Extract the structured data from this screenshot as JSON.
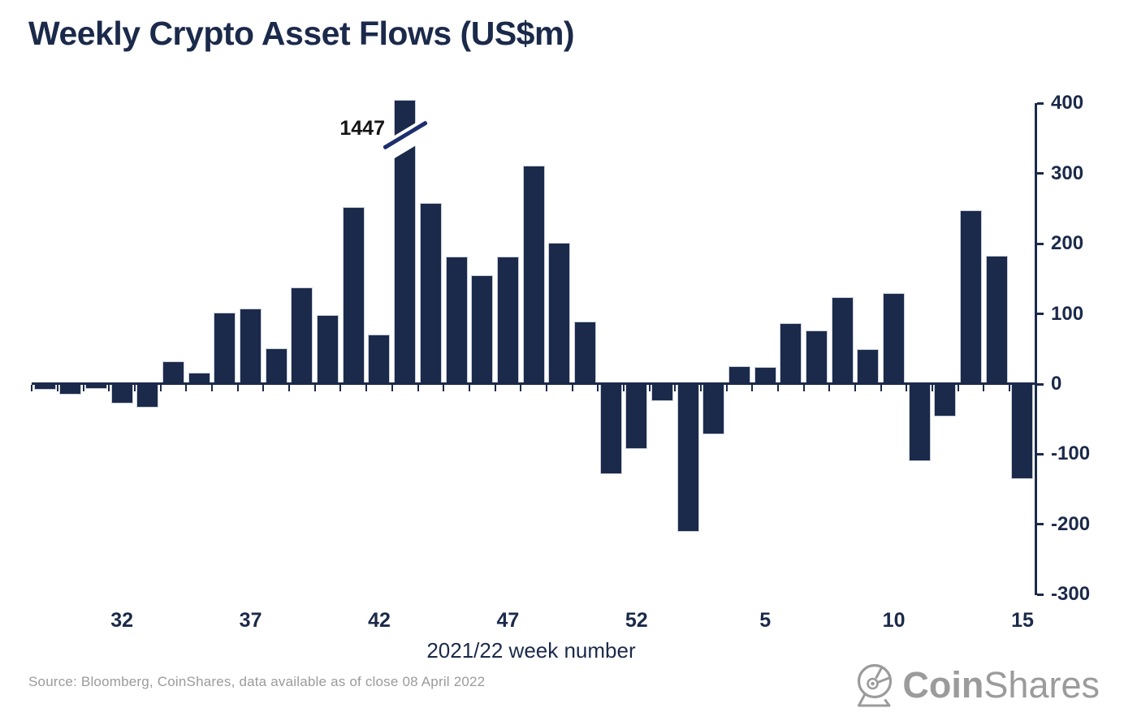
{
  "title": "Weekly Crypto Asset Flows (US$m)",
  "annotation": {
    "text": "1447"
  },
  "source_note": "Source: Bloomberg, CoinShares, data available as of close 08 April 2022",
  "logo": {
    "text_bold": "Coin",
    "text_light": "Shares"
  },
  "colors": {
    "navy": "#1b2a4a",
    "bar_outline": "#c9cfdb",
    "axis_break_stroke": "#1c2f6e",
    "annotation_text": "#141414",
    "muted_gray": "#9b9b9b",
    "background": "#ffffff"
  },
  "chart_data": {
    "type": "bar",
    "title": "Weekly Crypto Asset Flows (US$m)",
    "xlabel": "2021/22 week number",
    "ylabel": "",
    "ylim": [
      -300,
      400
    ],
    "yticks": [
      400,
      300,
      200,
      100,
      0,
      -100,
      -200,
      -300
    ],
    "grid": false,
    "legend": null,
    "categories": [
      "29",
      "30",
      "31",
      "32",
      "33",
      "34",
      "35",
      "36",
      "37",
      "38",
      "39",
      "40",
      "41",
      "42",
      "43",
      "44",
      "45",
      "46",
      "47",
      "48",
      "49",
      "50",
      "51",
      "52",
      "1",
      "2",
      "3",
      "4",
      "5",
      "6",
      "7",
      "8",
      "9",
      "10",
      "11",
      "12",
      "13",
      "14",
      "15"
    ],
    "values": [
      -9,
      -16,
      -8,
      -29,
      -35,
      31,
      15,
      101,
      106,
      50,
      137,
      97,
      251,
      70,
      1447,
      257,
      180,
      154,
      180,
      310,
      200,
      88,
      -130,
      -94,
      -26,
      -212,
      -73,
      24,
      23,
      86,
      75,
      123,
      49,
      128,
      -111,
      -48,
      246,
      182,
      -137
    ],
    "xtick_labels": [
      "32",
      "37",
      "42",
      "47",
      "52",
      "5",
      "10",
      "15"
    ],
    "xtick_slot_indexes": [
      3,
      8,
      13,
      18,
      23,
      28,
      33,
      38
    ],
    "broken_bar": {
      "week": "43",
      "value": 1447,
      "label": "1447",
      "note": "bar is clipped with a diagonal axis-break mark"
    }
  }
}
